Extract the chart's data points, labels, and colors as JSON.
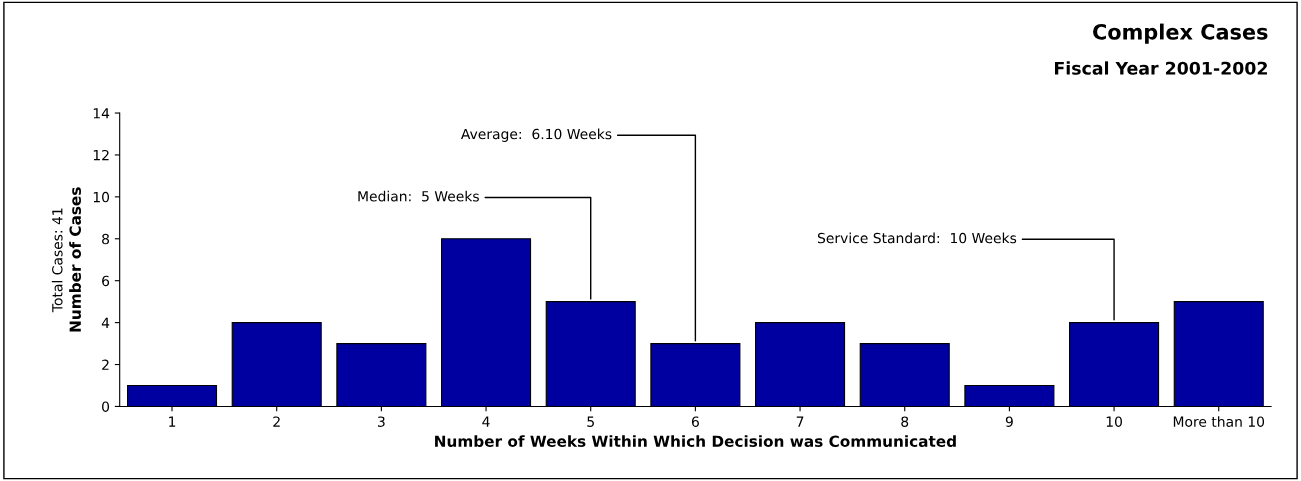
{
  "chart_data": {
    "type": "bar",
    "title": "Complex Cases",
    "subtitle": "Fiscal Year 2001-2002",
    "xlabel": "Number of Weeks Within Which Decision was Communicated",
    "ylabel": "Number of Cases",
    "categories": [
      "1",
      "2",
      "3",
      "4",
      "5",
      "6",
      "7",
      "8",
      "9",
      "10",
      "More than 10"
    ],
    "values": [
      1,
      4,
      3,
      8,
      5,
      3,
      4,
      3,
      1,
      4,
      5
    ],
    "color": "#0000a0",
    "ylim": [
      0,
      14
    ],
    "yticks": [
      0,
      2,
      4,
      6,
      8,
      10,
      12,
      14
    ],
    "grid": false,
    "annotations": [
      {
        "text": "Median:  5 Weeks",
        "x": "5",
        "y": 5
      },
      {
        "text": "Average:  6.10 Weeks",
        "x": "6",
        "y": 3
      },
      {
        "text": "Service Standard:  10 Weeks",
        "x": "10",
        "y": 4
      },
      "Total Cases: 41"
    ]
  }
}
